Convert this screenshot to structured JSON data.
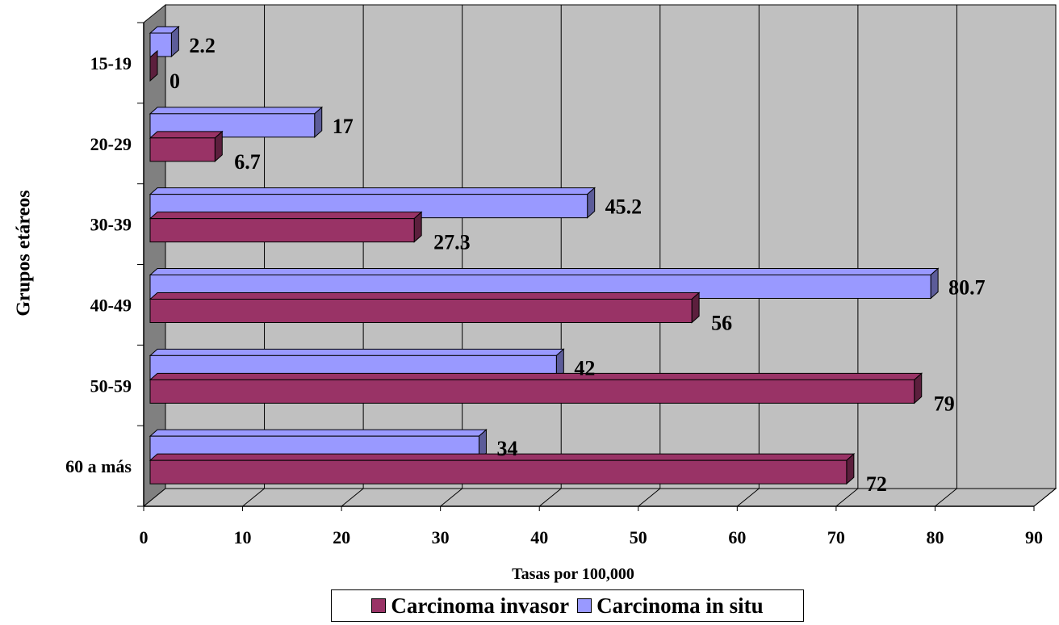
{
  "chart_data": {
    "type": "bar",
    "orientation": "horizontal",
    "three_d": true,
    "categories": [
      "15-19",
      "20-29",
      "30-39",
      "40-49",
      "50-59",
      "60 a más"
    ],
    "series": [
      {
        "name": "Carcinoma invasor",
        "values": [
          0,
          6.7,
          27.3,
          56,
          79,
          72
        ],
        "labels": [
          "0",
          "6.7",
          "27.3",
          "56",
          "79",
          "72"
        ]
      },
      {
        "name": "Carcinoma in situ",
        "values": [
          2.2,
          17,
          45.2,
          80.7,
          42,
          34
        ],
        "labels": [
          "2.2",
          "17",
          "45.2",
          "80.7",
          "42",
          "34"
        ]
      }
    ],
    "xlabel": "Tasas por 100,000",
    "ylabel": "Grupos etáreos",
    "xlim": [
      0,
      90
    ],
    "xticks": [
      "0",
      "10",
      "20",
      "30",
      "40",
      "50",
      "60",
      "70",
      "80",
      "90"
    ],
    "grid": true,
    "legend_position": "bottom"
  },
  "colors": {
    "invasor": "#993366",
    "invasor_dark": "#5c1f3d",
    "insitu": "#9999ff",
    "insitu_dark": "#5c5c99",
    "wall": "#c0c0c0",
    "floor": "#c0c0c0",
    "side_wall": "#808080"
  }
}
